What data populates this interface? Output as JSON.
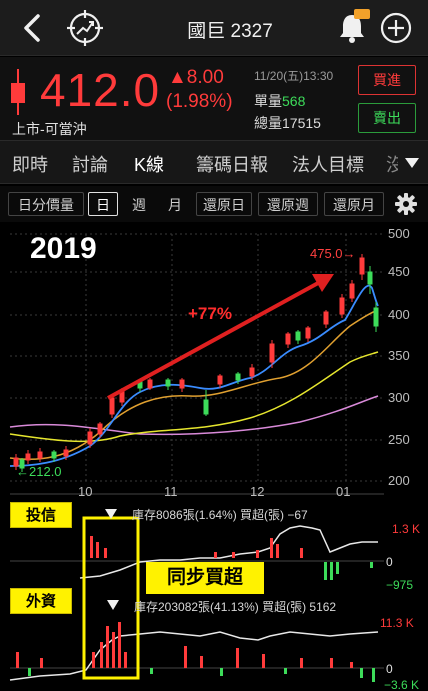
{
  "header": {
    "title": "國巨 2327",
    "back_icon": "chevron-left-icon",
    "radar_icon": "target-trend-icon",
    "bell_icon": "bell-icon",
    "plus_icon": "plus-circle-icon"
  },
  "quote": {
    "price": "412.0",
    "change": "▲8.00",
    "change_pct": "(1.98%)",
    "market_type": "上市-可當沖",
    "timestamp": "11/20(五)13:30",
    "volume_label": "單量",
    "volume_value": "568",
    "total_label": "總量",
    "total_value": "17515",
    "buy_label": "買進",
    "sell_label": "賣出"
  },
  "tabs": [
    "即時",
    "討論",
    "K線",
    "籌碼日報",
    "法人目標",
    "沒"
  ],
  "periods": [
    "日分價量",
    "日",
    "週",
    "月",
    "還原日",
    "還原週",
    "還原月"
  ],
  "chart": {
    "annotation_year": "2019",
    "annotation_gain": "+77%",
    "peak_label": "475.0→",
    "low_label": "←212.0",
    "y_ticks": [
      "500",
      "450",
      "400",
      "350",
      "300",
      "250",
      "200"
    ],
    "x_ticks": [
      "10",
      "11",
      "12",
      "01"
    ]
  },
  "indicators": {
    "trust_tag": "投信",
    "trust_text": "庫存8086張(1.64%)  買超(張) −67",
    "trust_max": "1.3 K",
    "trust_zero": "0",
    "trust_min": "−975",
    "foreign_tag": "外資",
    "foreign_text": "庫存203082張(41.13%)  買超(張) 5162",
    "foreign_max": "11.3 K",
    "foreign_zero": "0",
    "foreign_min": "−3.6 K",
    "sync_label": "同步買超"
  },
  "colors": {
    "up": "#ff3b3b",
    "down": "#3ddc5a",
    "ma_short": "#3a8cff",
    "ma_mid": "#e0a030",
    "ma_long_yellow": "#e6e62e",
    "ma_long_pink": "#d98ad9",
    "highlight_tag": "#fff200"
  }
}
